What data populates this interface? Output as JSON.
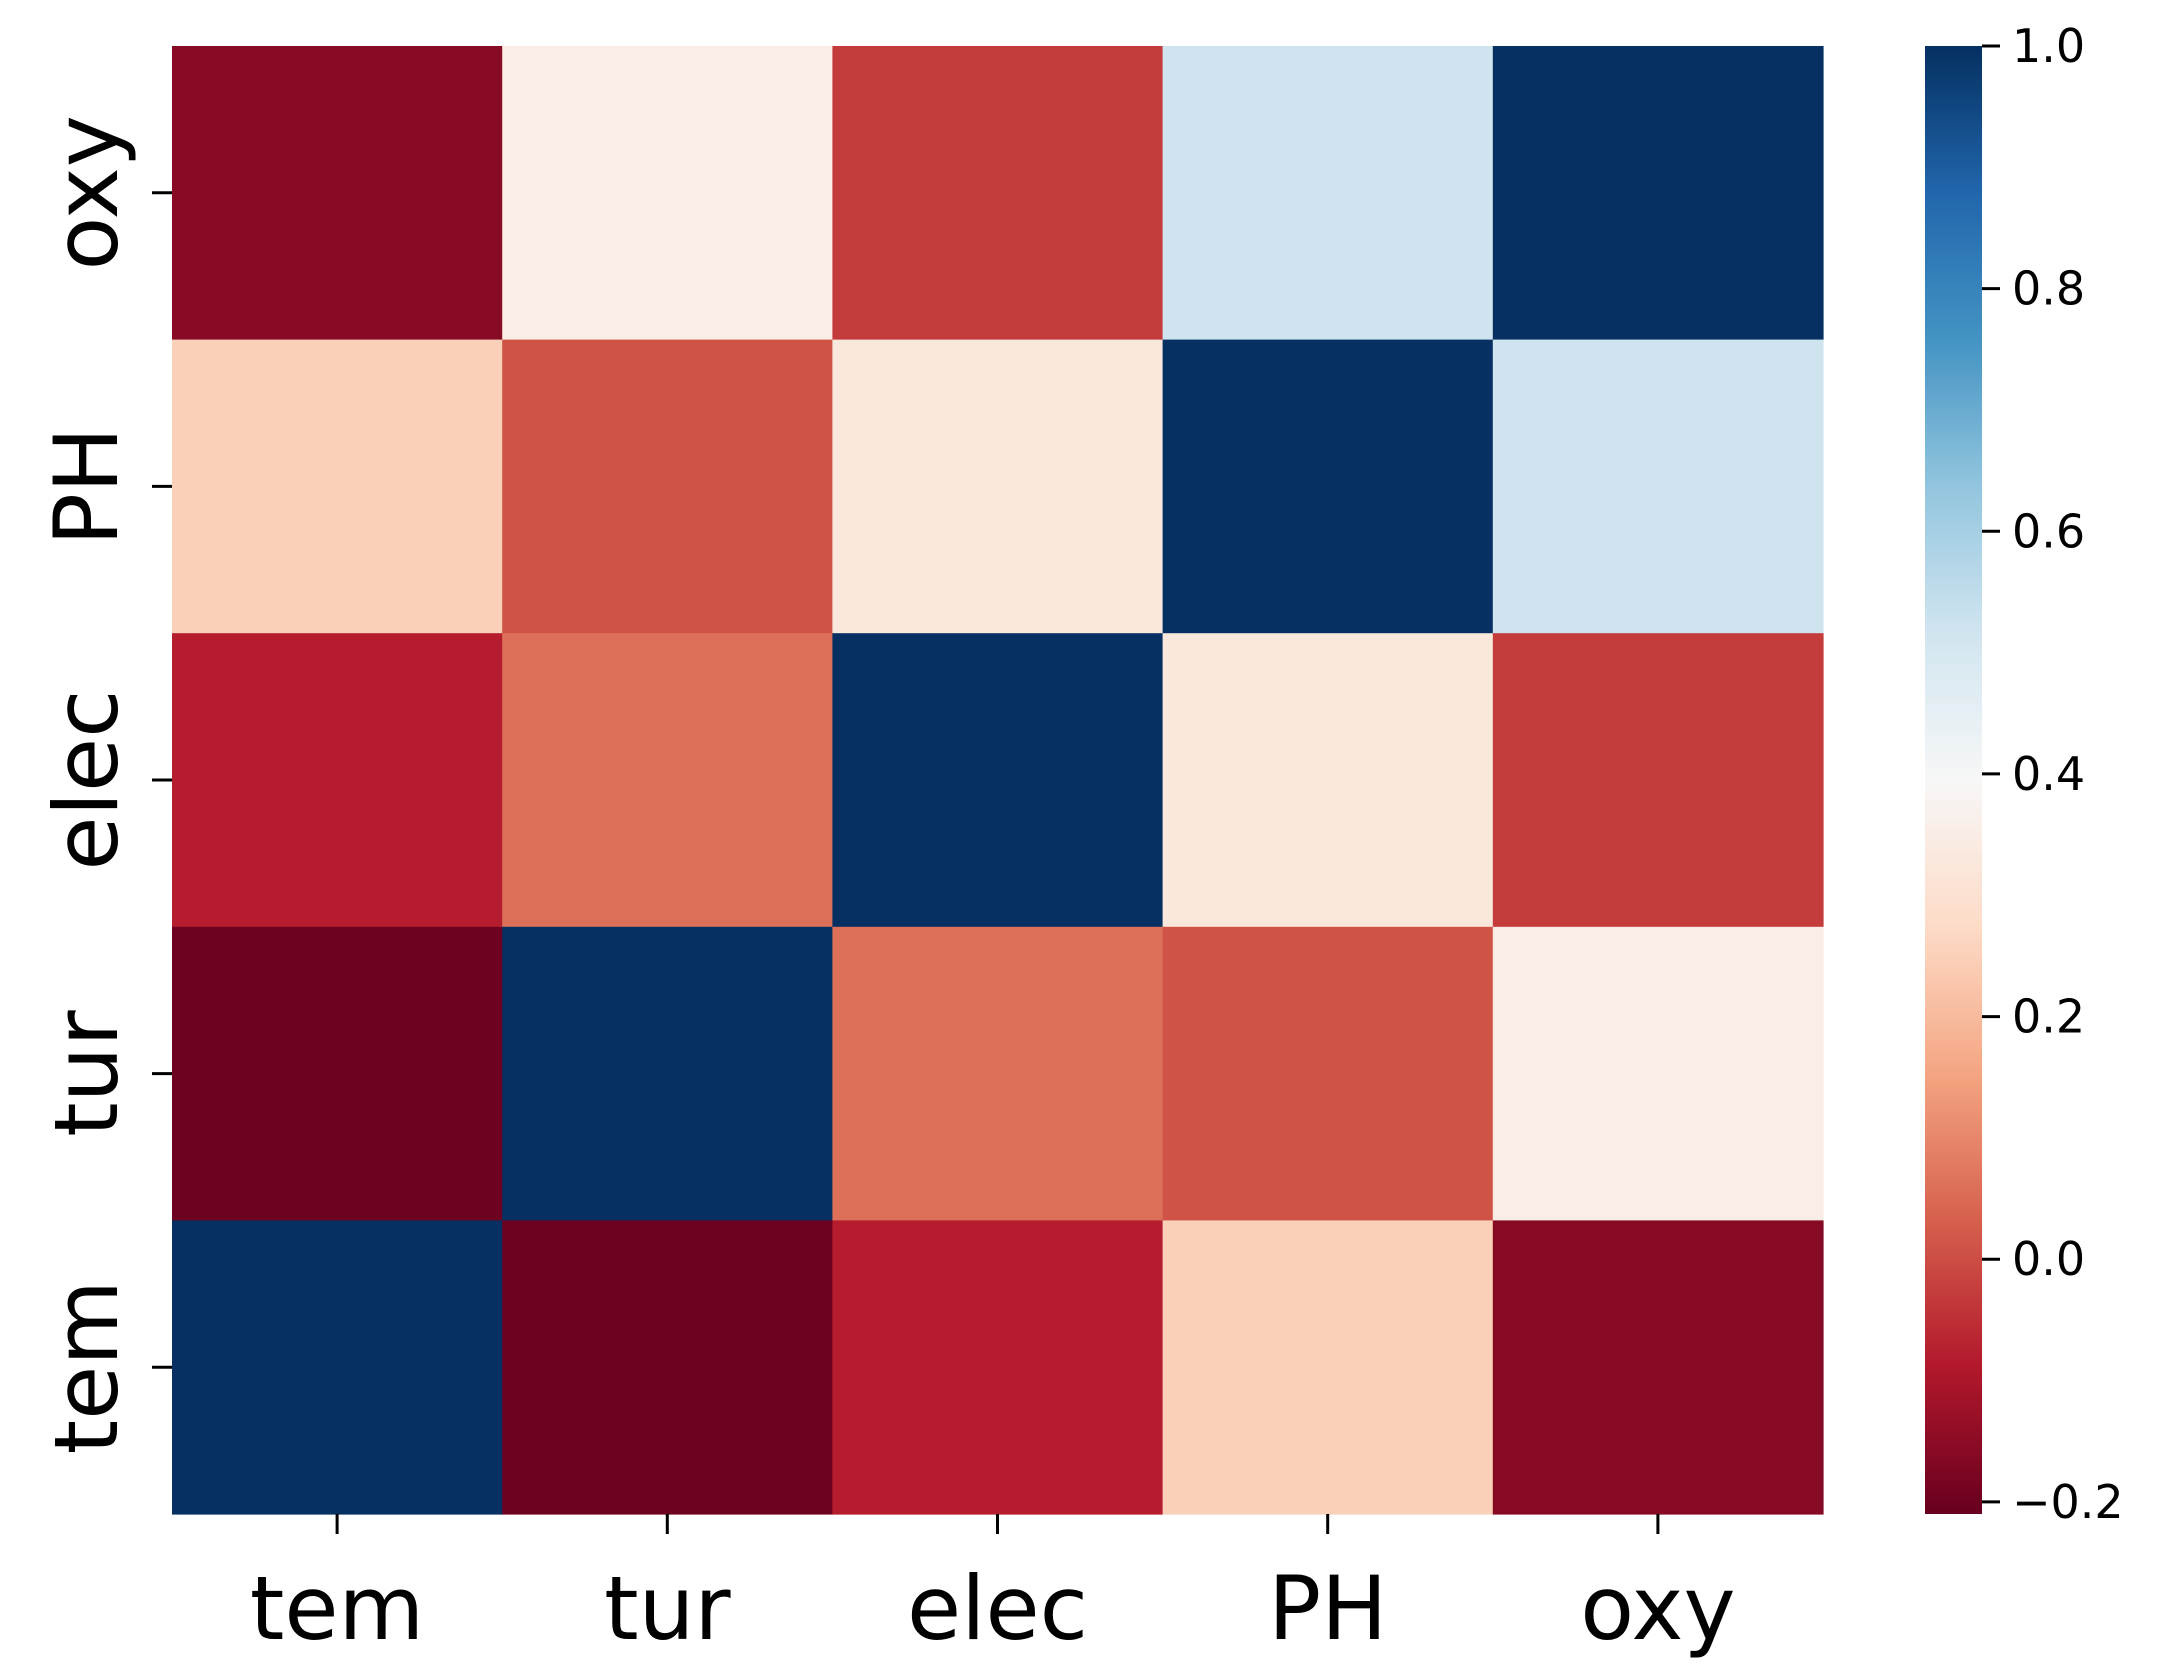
{
  "chart_data": {
    "type": "heatmap",
    "title": "",
    "xlabel": "",
    "ylabel": "",
    "x_labels": [
      "tem",
      "tur",
      "elec",
      "PH",
      "oxy"
    ],
    "y_labels_top_to_bottom": [
      "oxy",
      "PH",
      "elec",
      "tur",
      "tem"
    ],
    "matrix_rows_top_to_bottom": [
      [
        -0.16,
        0.35,
        -0.03,
        0.52,
        1.0
      ],
      [
        0.25,
        0.01,
        0.33,
        1.0,
        0.52
      ],
      [
        -0.08,
        0.06,
        1.0,
        0.33,
        -0.03
      ],
      [
        -0.2,
        1.0,
        0.06,
        0.01,
        0.35
      ],
      [
        1.0,
        -0.2,
        -0.08,
        0.25,
        -0.16
      ]
    ],
    "colorbar": {
      "colormap": "RdBu",
      "vmin": -0.21,
      "vmax": 1.0,
      "ticks": [
        -0.2,
        0.0,
        0.2,
        0.4,
        0.6,
        0.8,
        1.0
      ],
      "tick_labels": [
        "−0.2",
        "0.0",
        "0.2",
        "0.4",
        "0.6",
        "0.8",
        "1.0"
      ]
    },
    "colormap_stops": [
      {
        "t": 0.0,
        "color": "#67001f"
      },
      {
        "t": 0.1,
        "color": "#b2182b"
      },
      {
        "t": 0.2,
        "color": "#d6604d"
      },
      {
        "t": 0.3,
        "color": "#f4a582"
      },
      {
        "t": 0.4,
        "color": "#fddbc7"
      },
      {
        "t": 0.5,
        "color": "#f7f7f7"
      },
      {
        "t": 0.6,
        "color": "#d1e5f0"
      },
      {
        "t": 0.7,
        "color": "#92c5de"
      },
      {
        "t": 0.8,
        "color": "#4393c3"
      },
      {
        "t": 0.9,
        "color": "#2166ac"
      },
      {
        "t": 1.0,
        "color": "#053061"
      }
    ]
  }
}
